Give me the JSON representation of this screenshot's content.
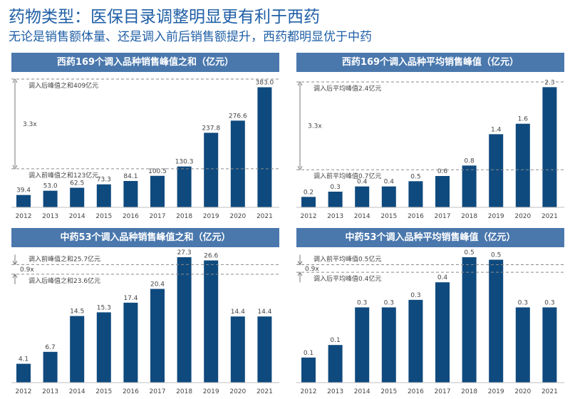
{
  "page": {
    "title": "药物类型：医保目录调整明显更有利于西药",
    "subtitle": "无论是销售额体量、还是调入前后销售额提升，西药都明显优于中药"
  },
  "colors": {
    "bar": "#0f4a7e",
    "header": "#4a78ad",
    "title": "#1f5fa6",
    "reference_line": "#8a8a8a"
  },
  "chart_data": [
    {
      "type": "bar",
      "title": "西药169个调入品种销售峰值之和（亿元）",
      "categories": [
        "2012",
        "2013",
        "2014",
        "2015",
        "2016",
        "2017",
        "2018",
        "2019",
        "2020",
        "2021"
      ],
      "values": [
        39.4,
        53.0,
        62.5,
        73.3,
        84.1,
        100.5,
        130.3,
        237.8,
        276.6,
        383.0
      ],
      "value_labels": [
        "39.4",
        "53.0",
        "62.5",
        "73.3",
        "84.1",
        "100.5",
        "130.3",
        "237.8",
        "276.6",
        "383.0"
      ],
      "ylim": [
        0,
        400
      ],
      "grid": false,
      "reference_lines": [
        {
          "value": 123,
          "label": "调入前峰值之和123亿元",
          "label_side": "below"
        },
        {
          "value": 409,
          "label": "调入后峰值之和409亿元",
          "label_side": "below"
        }
      ],
      "ratio": {
        "label": "3.3x",
        "kind": "span"
      }
    },
    {
      "type": "bar",
      "title": "西药169个调入品种平均销售峰值（亿元）",
      "categories": [
        "2012",
        "2013",
        "2014",
        "2015",
        "2016",
        "2017",
        "2018",
        "2019",
        "2020",
        "2021"
      ],
      "values": [
        0.2,
        0.3,
        0.4,
        0.4,
        0.5,
        0.6,
        0.8,
        1.4,
        1.6,
        2.3
      ],
      "value_labels": [
        "0.2",
        "0.3",
        "0.4",
        "0.4",
        "0.5",
        "0.6",
        "0.8",
        "1.4",
        "1.6",
        "2.3"
      ],
      "ylim": [
        0,
        2.4
      ],
      "grid": false,
      "reference_lines": [
        {
          "value": 0.72,
          "label": "调入前平均峰值0.7亿元",
          "label_side": "below"
        },
        {
          "value": 2.4,
          "label": "调入后平均峰值2.4亿元",
          "label_side": "below"
        }
      ],
      "ratio": {
        "label": "3.3x",
        "kind": "span"
      }
    },
    {
      "type": "bar",
      "title": "中药53个调入品种销售峰值之和（亿元）",
      "categories": [
        "2012",
        "2013",
        "2014",
        "2015",
        "2016",
        "2017",
        "2018",
        "2019",
        "2020",
        "2021"
      ],
      "values": [
        4.1,
        6.7,
        14.5,
        15.3,
        17.4,
        20.4,
        27.3,
        26.6,
        14.4,
        14.4
      ],
      "value_labels": [
        "4.1",
        "6.7",
        "14.5",
        "15.3",
        "17.4",
        "20.4",
        "27.3",
        "26.6",
        "14.4",
        "14.4"
      ],
      "ylim": [
        0,
        27.3
      ],
      "grid": false,
      "reference_lines": [
        {
          "value": 25.7,
          "label": "调入前峰值之和25.7亿元",
          "label_side": "above"
        },
        {
          "value": 23.6,
          "label": "调入后峰值之和23.6亿元",
          "label_side": "below"
        }
      ],
      "ratio": {
        "label": "0.9x",
        "kind": "gap"
      }
    },
    {
      "type": "bar",
      "title": "中药53个调入品种平均销售峰值（亿元）",
      "categories": [
        "2012",
        "2013",
        "2014",
        "2015",
        "2016",
        "2017",
        "2018",
        "2019",
        "2020",
        "2021"
      ],
      "values": [
        0.1,
        0.15,
        0.3,
        0.3,
        0.33,
        0.4,
        0.5,
        0.49,
        0.3,
        0.3
      ],
      "value_labels": [
        "0.1",
        "0.1",
        "0.3",
        "0.3",
        "0.3",
        "0.4",
        "0.5",
        "0.5",
        "0.3",
        "0.3"
      ],
      "ylim": [
        0,
        0.5
      ],
      "grid": false,
      "reference_lines": [
        {
          "value": 0.47,
          "label": "调入前平均峰值0.5亿元",
          "label_side": "above"
        },
        {
          "value": 0.44,
          "label": "调入后平均峰值0.4亿元",
          "label_side": "below"
        }
      ],
      "ratio": {
        "label": "0.9x",
        "kind": "gap"
      }
    }
  ]
}
